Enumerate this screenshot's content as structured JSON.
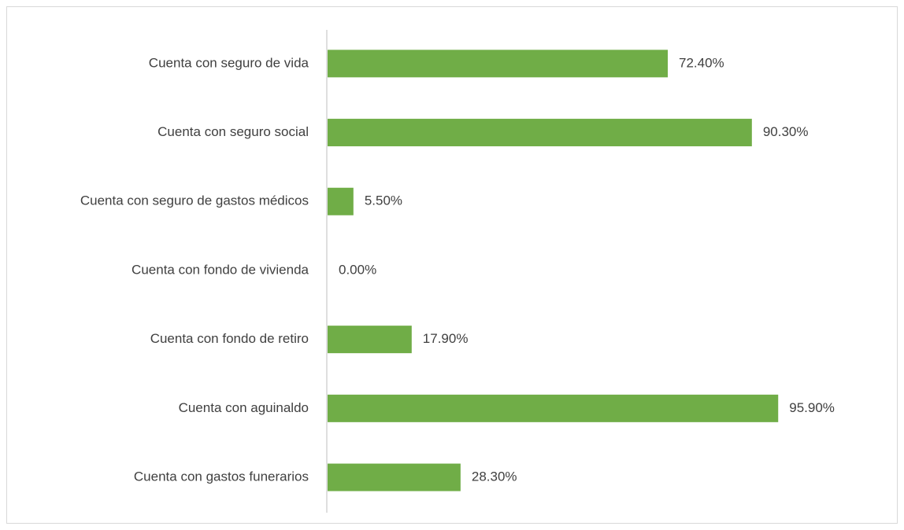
{
  "chart_data": {
    "type": "bar",
    "orientation": "horizontal",
    "categories": [
      "Cuenta con seguro de vida",
      "Cuenta con seguro social",
      "Cuenta con seguro de gastos médicos",
      "Cuenta con fondo de vivienda",
      "Cuenta con fondo de retiro",
      "Cuenta con aguinaldo",
      "Cuenta con gastos funerarios"
    ],
    "values": [
      72.4,
      90.3,
      5.5,
      0,
      17.9,
      95.9,
      28.3
    ],
    "value_labels": [
      "72.40%",
      "90.30%",
      "5.50%",
      "0.00%",
      "17.90%",
      "95.90%",
      "28.30%"
    ],
    "color": "#70ad47"
  }
}
